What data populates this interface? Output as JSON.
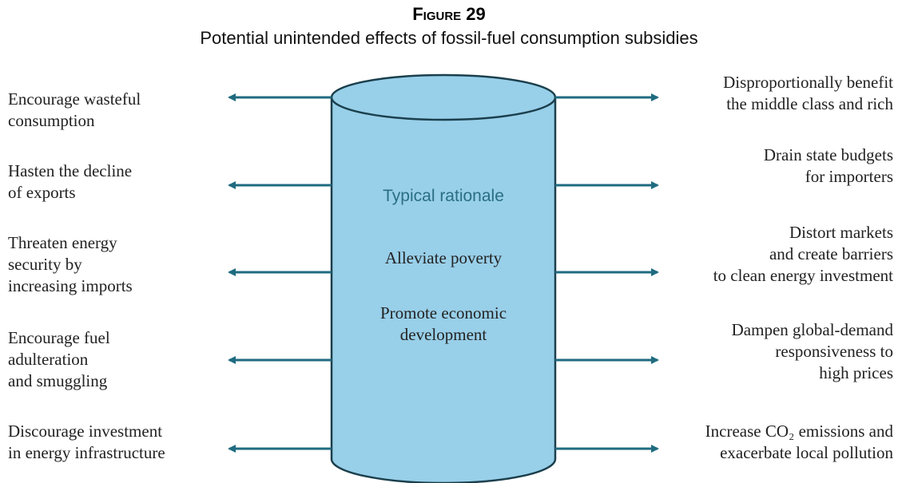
{
  "figure_label": "Figure 29",
  "title": "Potential unintended effects of fossil-fuel consumption subsidies",
  "center": {
    "heading": "Typical rationale",
    "items": [
      [
        "Alleviate poverty"
      ],
      [
        "Promote economic",
        "development"
      ]
    ]
  },
  "left": [
    {
      "lines": [
        "Encourage wasteful",
        "consumption"
      ]
    },
    {
      "lines": [
        "Hasten the decline",
        "of exports"
      ]
    },
    {
      "lines": [
        "Threaten energy",
        "security by",
        "increasing imports"
      ]
    },
    {
      "lines": [
        "Encourage fuel",
        "adulteration",
        "and smuggling"
      ]
    },
    {
      "lines": [
        "Discourage investment",
        "in energy infrastructure"
      ]
    }
  ],
  "right": [
    {
      "lines": [
        "Disproportionally benefit",
        "the middle class and rich"
      ]
    },
    {
      "lines": [
        "Drain state budgets",
        "for importers"
      ]
    },
    {
      "lines": [
        "Distort markets",
        "and create barriers",
        "to clean energy investment"
      ]
    },
    {
      "lines": [
        "Dampen global-demand",
        "responsiveness to",
        "high prices"
      ]
    },
    {
      "lines": [
        "Increase CO₂ emissions and",
        "exacerbate local pollution"
      ]
    }
  ]
}
